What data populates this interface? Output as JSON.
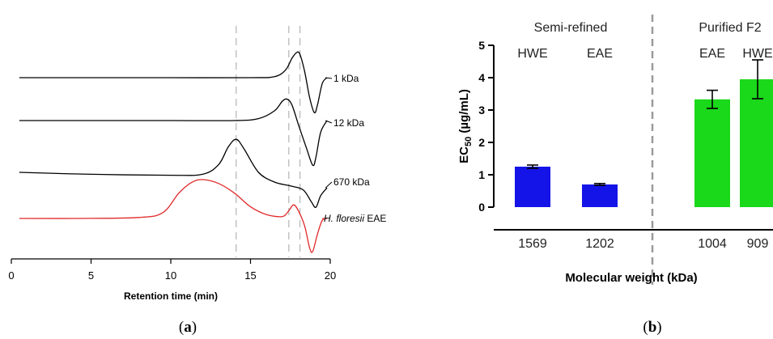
{
  "chart_data": [
    {
      "type": "line",
      "panel_label": "a",
      "xlabel": "Retention time (min)",
      "ylabel": "",
      "xlim": [
        0,
        20
      ],
      "xticks": [
        "0",
        "5",
        "10",
        "15",
        "20"
      ],
      "grid": false,
      "reference_lines_x": [
        14.1,
        17.4,
        18.1
      ],
      "series": [
        {
          "name": "1  kDa",
          "color": "#000000",
          "points": [
            [
              0.5,
              0.0
            ],
            [
              5,
              0.0
            ],
            [
              10,
              0.0
            ],
            [
              15,
              0.0
            ],
            [
              16.5,
              0.05
            ],
            [
              17.2,
              0.4
            ],
            [
              17.6,
              1.0
            ],
            [
              17.9,
              1.3
            ],
            [
              18.1,
              1.2
            ],
            [
              18.4,
              0.3
            ],
            [
              18.7,
              -1.0
            ],
            [
              19.0,
              -1.8
            ],
            [
              19.2,
              -1.4
            ],
            [
              19.5,
              -0.3
            ],
            [
              19.8,
              0.0
            ]
          ]
        },
        {
          "name": "12 kDa",
          "color": "#000000",
          "points": [
            [
              0.5,
              0.0
            ],
            [
              5,
              0.0
            ],
            [
              10,
              0.0
            ],
            [
              14,
              0.0
            ],
            [
              15.5,
              0.1
            ],
            [
              16.5,
              0.5
            ],
            [
              17.0,
              1.0
            ],
            [
              17.3,
              1.1
            ],
            [
              17.6,
              0.8
            ],
            [
              18.0,
              -0.2
            ],
            [
              18.5,
              -1.4
            ],
            [
              18.9,
              -2.3
            ],
            [
              19.1,
              -1.9
            ],
            [
              19.4,
              -0.6
            ],
            [
              19.8,
              0.0
            ]
          ]
        },
        {
          "name": "670 kDa",
          "color": "#000000",
          "points": [
            [
              0.5,
              0.0
            ],
            [
              5,
              -0.1
            ],
            [
              10,
              -0.15
            ],
            [
              12,
              -0.1
            ],
            [
              13,
              0.4
            ],
            [
              13.6,
              1.3
            ],
            [
              14.1,
              1.7
            ],
            [
              14.6,
              1.2
            ],
            [
              15.5,
              0.0
            ],
            [
              16.5,
              -0.5
            ],
            [
              17.5,
              -0.7
            ],
            [
              18.3,
              -0.9
            ],
            [
              18.8,
              -1.5
            ],
            [
              19.1,
              -1.8
            ],
            [
              19.4,
              -1.2
            ],
            [
              19.8,
              -0.8
            ]
          ]
        },
        {
          "name": "H. floresii EAE",
          "name_parts": [
            "H. floresii",
            "EAE"
          ],
          "color": "#e0292a",
          "points": [
            [
              0.5,
              0.0
            ],
            [
              4,
              0.0
            ],
            [
              8,
              0.05
            ],
            [
              9.5,
              0.3
            ],
            [
              10.5,
              1.3
            ],
            [
              11.3,
              1.85
            ],
            [
              12.0,
              2.0
            ],
            [
              13.0,
              1.8
            ],
            [
              14.0,
              1.3
            ],
            [
              15.0,
              0.6
            ],
            [
              16.0,
              0.2
            ],
            [
              17.0,
              0.1
            ],
            [
              17.4,
              0.4
            ],
            [
              17.7,
              0.7
            ],
            [
              18.0,
              0.4
            ],
            [
              18.4,
              -0.4
            ],
            [
              18.7,
              -1.5
            ],
            [
              18.9,
              -1.7
            ],
            [
              19.2,
              -0.8
            ],
            [
              19.5,
              -0.1
            ],
            [
              19.8,
              0.0
            ]
          ]
        }
      ]
    },
    {
      "type": "bar",
      "panel_label": "b",
      "xlabel": "Molecular weight (kDa)",
      "ylabel": "EC50 (µg/mL)",
      "ylabel_parts": [
        "EC",
        "50",
        " (µg/mL)"
      ],
      "ylim": [
        0,
        5
      ],
      "yticks": [
        "0",
        "1",
        "2",
        "3",
        "4",
        "5"
      ],
      "grid": false,
      "categories": [
        "1569",
        "1202",
        "1004",
        "909"
      ],
      "values": [
        1.25,
        0.7,
        3.33,
        3.95
      ],
      "errors": [
        0.05,
        0.03,
        0.28,
        0.6
      ],
      "bar_labels": [
        "HWE",
        "EAE",
        "EAE",
        "HWE"
      ],
      "colors": [
        "#1414e8",
        "#1414e8",
        "#1ad81a",
        "#1ad81a"
      ],
      "groups": [
        {
          "label": "Semi-refined",
          "categories": [
            "1569",
            "1202"
          ]
        },
        {
          "label": "Purified F2",
          "categories": [
            "1004",
            "909"
          ]
        }
      ]
    }
  ],
  "captions": {
    "a": "a",
    "b": "b"
  }
}
